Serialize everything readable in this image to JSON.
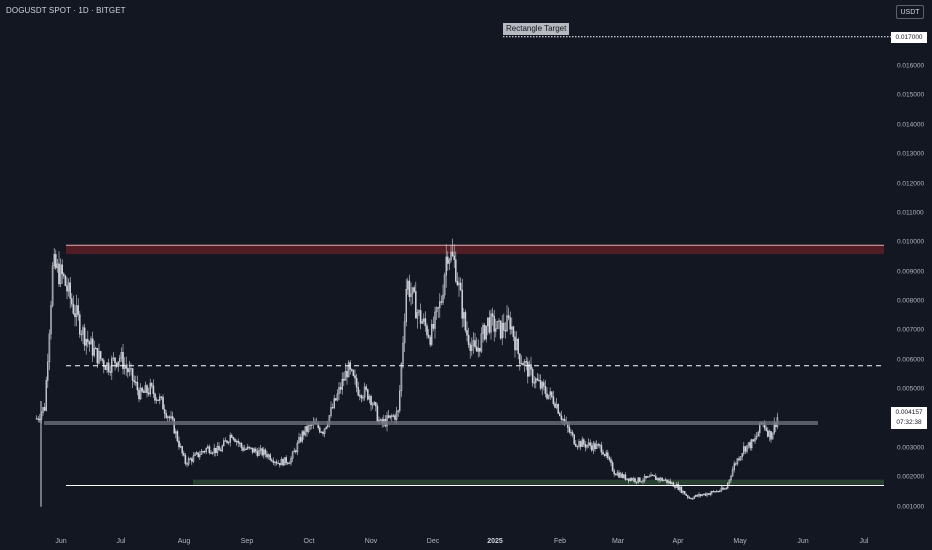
{
  "header": {
    "title": "DOGUSDT SPOT · 1D · BITGET",
    "currency": "USDT"
  },
  "annotations": {
    "rectangle_target_label": "Rectangle Target",
    "target_price_label": "0.017000",
    "last_price_label": "0.004157",
    "countdown_label": "07:32:38"
  },
  "colors": {
    "background": "#131722",
    "candle": "#d1d4dc",
    "resistance_zone": "#5c1f26",
    "support_zone": "#2b4632",
    "mid_line": "#6b6e78",
    "white_lines": "#ffffff"
  },
  "chart_data": {
    "type": "candlestick",
    "title": "DOGUSDT SPOT · 1D · BITGET",
    "price_ticks": [
      "0.017000",
      "0.016000",
      "0.015000",
      "0.014000",
      "0.013000",
      "0.012000",
      "0.011000",
      "0.010000",
      "0.009000",
      "0.008000",
      "0.007000",
      "0.006000",
      "0.005000",
      "0.004000",
      "0.003000",
      "0.002000",
      "0.001000"
    ],
    "month_ticks": [
      "Jun",
      "Jul",
      "Aug",
      "Sep",
      "Oct",
      "Nov",
      "Dec",
      "2025",
      "Feb",
      "Mar",
      "Apr",
      "May",
      "Jun",
      "Jul"
    ],
    "ylim": [
      0.0008,
      0.0175
    ],
    "series_close_path": [
      [
        "2024-05-20",
        0.004
      ],
      [
        "2024-05-24",
        0.0044
      ],
      [
        "2024-05-28",
        0.0092
      ],
      [
        "2024-06-02",
        0.0088
      ],
      [
        "2024-06-07",
        0.0078
      ],
      [
        "2024-06-12",
        0.0069
      ],
      [
        "2024-06-18",
        0.0062
      ],
      [
        "2024-06-24",
        0.0058
      ],
      [
        "2024-06-30",
        0.0061
      ],
      [
        "2024-07-05",
        0.0055
      ],
      [
        "2024-07-10",
        0.0048
      ],
      [
        "2024-07-15",
        0.005
      ],
      [
        "2024-07-20",
        0.0046
      ],
      [
        "2024-07-26",
        0.0038
      ],
      [
        "2024-08-01",
        0.0025
      ],
      [
        "2024-08-06",
        0.0027
      ],
      [
        "2024-08-12",
        0.003
      ],
      [
        "2024-08-18",
        0.0029
      ],
      [
        "2024-08-24",
        0.0035
      ],
      [
        "2024-08-29",
        0.003
      ],
      [
        "2024-09-04",
        0.0029
      ],
      [
        "2024-09-10",
        0.0028
      ],
      [
        "2024-09-16",
        0.0025
      ],
      [
        "2024-09-22",
        0.0026
      ],
      [
        "2024-09-28",
        0.0035
      ],
      [
        "2024-10-03",
        0.0038
      ],
      [
        "2024-10-08",
        0.0036
      ],
      [
        "2024-10-14",
        0.0046
      ],
      [
        "2024-10-20",
        0.0057
      ],
      [
        "2024-10-25",
        0.005
      ],
      [
        "2024-10-31",
        0.0048
      ],
      [
        "2024-11-05",
        0.0038
      ],
      [
        "2024-11-10",
        0.004
      ],
      [
        "2024-11-14",
        0.0042
      ],
      [
        "2024-11-18",
        0.0087
      ],
      [
        "2024-11-24",
        0.0075
      ],
      [
        "2024-11-30",
        0.0068
      ],
      [
        "2024-12-05",
        0.008
      ],
      [
        "2024-12-08",
        0.0098
      ],
      [
        "2024-12-12",
        0.0092
      ],
      [
        "2024-12-17",
        0.007
      ],
      [
        "2024-12-22",
        0.0062
      ],
      [
        "2024-12-28",
        0.0073
      ],
      [
        "2025-01-03",
        0.007
      ],
      [
        "2025-01-08",
        0.0073
      ],
      [
        "2025-01-12",
        0.0062
      ],
      [
        "2025-01-18",
        0.0055
      ],
      [
        "2025-01-24",
        0.005
      ],
      [
        "2025-01-30",
        0.0046
      ],
      [
        "2025-02-04",
        0.0038
      ],
      [
        "2025-02-09",
        0.0032
      ],
      [
        "2025-02-15",
        0.0031
      ],
      [
        "2025-02-22",
        0.003
      ],
      [
        "2025-02-28",
        0.0022
      ],
      [
        "2025-03-05",
        0.002
      ],
      [
        "2025-03-12",
        0.0019
      ],
      [
        "2025-03-19",
        0.002
      ],
      [
        "2025-03-25",
        0.0019
      ],
      [
        "2025-03-31",
        0.0017
      ],
      [
        "2025-04-06",
        0.0013
      ],
      [
        "2025-04-12",
        0.0014
      ],
      [
        "2025-04-18",
        0.0015
      ],
      [
        "2025-04-24",
        0.0016
      ],
      [
        "2025-04-28",
        0.0024
      ],
      [
        "2025-05-03",
        0.003
      ],
      [
        "2025-05-08",
        0.0032
      ],
      [
        "2025-05-12",
        0.0039
      ],
      [
        "2025-05-16",
        0.0034
      ],
      [
        "2025-05-20",
        0.00416
      ]
    ],
    "levels": {
      "resistance_zone": [
        0.0096,
        0.0099
      ],
      "breakdown_dashed": 0.0058,
      "mid_line": 0.00385,
      "support_zone": [
        0.00175,
        0.00192
      ],
      "base_line": 0.00172,
      "rectangle_target": 0.017,
      "last_price": 0.004157
    },
    "grid": false,
    "legend": "none"
  }
}
